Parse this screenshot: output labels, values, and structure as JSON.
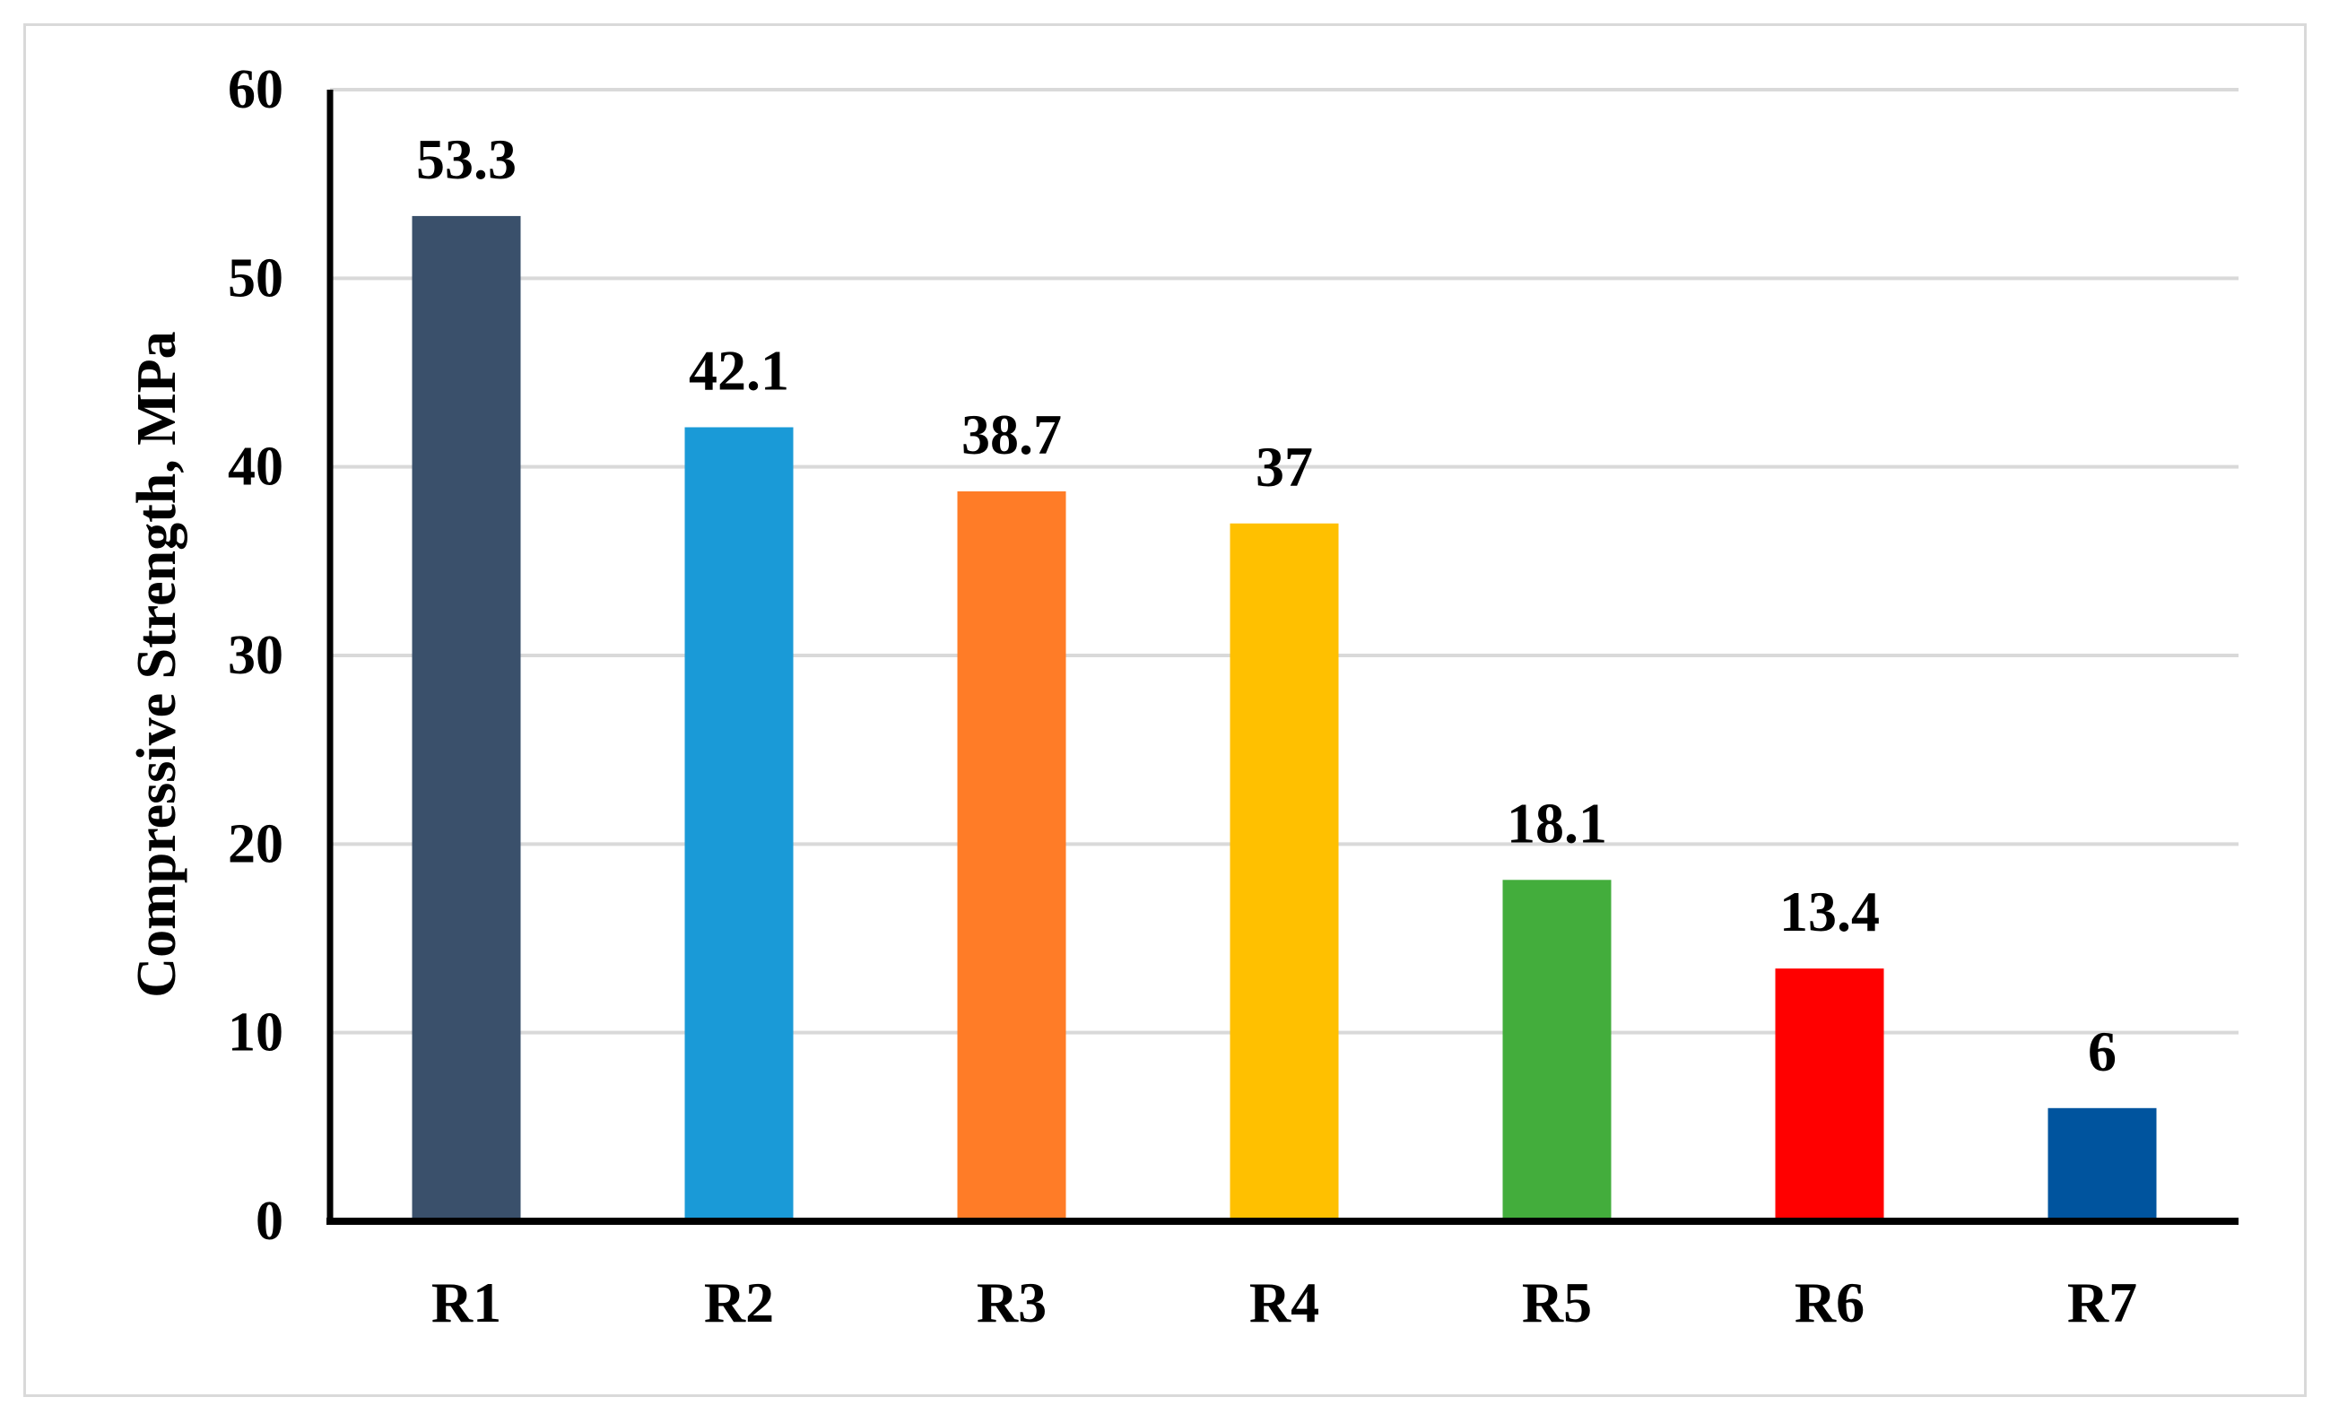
{
  "chart_data": {
    "type": "bar",
    "categories": [
      "R1",
      "R2",
      "R3",
      "R4",
      "R5",
      "R6",
      "R7"
    ],
    "values": [
      53.3,
      42.1,
      38.7,
      37,
      18.1,
      13.4,
      6
    ],
    "data_labels": [
      "53.3",
      "42.1",
      "38.7",
      "37",
      "18.1",
      "13.4",
      "6"
    ],
    "colors": [
      "#3a506b",
      "#1a9ad7",
      "#ff7c27",
      "#ffc000",
      "#43ad3c",
      "#ff0000",
      "#00549e"
    ],
    "title": "",
    "xlabel": "",
    "ylabel": "Compressive Strength, MPa",
    "ylim": [
      0,
      60
    ],
    "yticks": [
      0,
      10,
      20,
      30,
      40,
      50,
      60
    ],
    "ytick_labels": [
      "0",
      "10",
      "20",
      "30",
      "40",
      "50",
      "60"
    ],
    "grid": true,
    "legend": "none"
  }
}
